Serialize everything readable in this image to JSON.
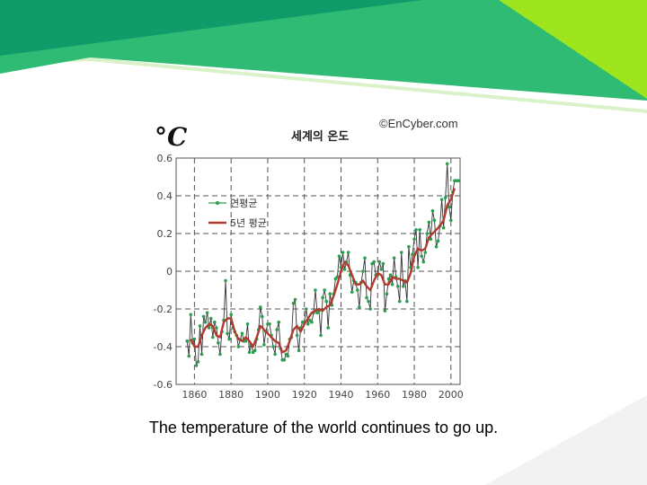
{
  "slide": {
    "caption": "The temperature of the world continues to go up.",
    "colors": {
      "banner_dark": "#109b6a",
      "banner_mid": "#2fbb73",
      "banner_lime": "#9ee51e",
      "banner_pale": "#d9f2c8"
    }
  },
  "chart_data": {
    "type": "line",
    "title": "세계의 온도",
    "unit_label": "°C",
    "copyright": "©EnCyber.com",
    "xlim": [
      1850,
      2005
    ],
    "ylim": [
      -0.6,
      0.6
    ],
    "grid": true,
    "legend_position": "top-left",
    "x_ticks": [
      1860,
      1880,
      1900,
      1920,
      1940,
      1960,
      1980,
      2000
    ],
    "y_ticks": [
      -0.6,
      -0.4,
      -0.2,
      0,
      0.2,
      0.4,
      0.6
    ],
    "y_tick_labels": [
      "-0.6",
      "-0.4",
      "-0.2",
      "0",
      "0.2",
      "0.4",
      "0.6"
    ],
    "series": [
      {
        "name": "연평균",
        "color": "#2a9d4f",
        "style": "line-markers",
        "x": [
          1856,
          1857,
          1858,
          1859,
          1860,
          1861,
          1862,
          1863,
          1864,
          1865,
          1866,
          1867,
          1868,
          1869,
          1870,
          1871,
          1872,
          1873,
          1874,
          1875,
          1876,
          1877,
          1878,
          1879,
          1880,
          1881,
          1882,
          1883,
          1884,
          1885,
          1886,
          1887,
          1888,
          1889,
          1890,
          1891,
          1892,
          1893,
          1894,
          1895,
          1896,
          1897,
          1898,
          1899,
          1900,
          1901,
          1902,
          1903,
          1904,
          1905,
          1906,
          1907,
          1908,
          1909,
          1910,
          1911,
          1912,
          1913,
          1914,
          1915,
          1916,
          1917,
          1918,
          1919,
          1920,
          1921,
          1922,
          1923,
          1924,
          1925,
          1926,
          1927,
          1928,
          1929,
          1930,
          1931,
          1932,
          1933,
          1934,
          1935,
          1936,
          1937,
          1938,
          1939,
          1940,
          1941,
          1942,
          1943,
          1944,
          1945,
          1946,
          1947,
          1948,
          1949,
          1950,
          1951,
          1952,
          1953,
          1954,
          1955,
          1956,
          1957,
          1958,
          1959,
          1960,
          1961,
          1962,
          1963,
          1964,
          1965,
          1966,
          1967,
          1968,
          1969,
          1970,
          1971,
          1972,
          1973,
          1974,
          1975,
          1976,
          1977,
          1978,
          1979,
          1980,
          1981,
          1982,
          1983,
          1984,
          1985,
          1986,
          1987,
          1988,
          1989,
          1990,
          1991,
          1992,
          1993,
          1994,
          1995,
          1996,
          1997,
          1998,
          1999,
          2000,
          2001,
          2002,
          2003,
          2004
        ],
        "values": [
          -0.37,
          -0.45,
          -0.23,
          -0.38,
          -0.36,
          -0.5,
          -0.48,
          -0.29,
          -0.44,
          -0.24,
          -0.27,
          -0.22,
          -0.3,
          -0.25,
          -0.35,
          -0.27,
          -0.3,
          -0.38,
          -0.44,
          -0.32,
          -0.26,
          -0.05,
          -0.33,
          -0.36,
          -0.23,
          -0.3,
          -0.32,
          -0.34,
          -0.4,
          -0.36,
          -0.33,
          -0.37,
          -0.37,
          -0.28,
          -0.43,
          -0.39,
          -0.43,
          -0.42,
          -0.36,
          -0.31,
          -0.19,
          -0.24,
          -0.39,
          -0.32,
          -0.28,
          -0.28,
          -0.34,
          -0.4,
          -0.44,
          -0.31,
          -0.27,
          -0.41,
          -0.47,
          -0.47,
          -0.44,
          -0.45,
          -0.36,
          -0.35,
          -0.17,
          -0.15,
          -0.34,
          -0.42,
          -0.3,
          -0.27,
          -0.27,
          -0.2,
          -0.28,
          -0.26,
          -0.27,
          -0.22,
          -0.1,
          -0.22,
          -0.21,
          -0.34,
          -0.14,
          -0.1,
          -0.16,
          -0.3,
          -0.12,
          -0.18,
          -0.12,
          -0.04,
          -0.03,
          0.08,
          0.02,
          0.1,
          0.01,
          0.05,
          0.1,
          -0.02,
          -0.11,
          -0.05,
          -0.06,
          -0.1,
          -0.19,
          -0.06,
          0.0,
          0.07,
          -0.14,
          -0.16,
          -0.2,
          0.04,
          0.05,
          -0.02,
          -0.02,
          0.05,
          0.01,
          0.04,
          -0.21,
          -0.12,
          -0.04,
          -0.02,
          -0.07,
          0.07,
          -0.03,
          -0.08,
          -0.16,
          0.1,
          -0.08,
          -0.05,
          -0.16,
          0.13,
          0.02,
          0.09,
          0.17,
          0.22,
          0.02,
          0.22,
          0.08,
          0.05,
          0.1,
          0.2,
          0.26,
          0.17,
          0.32,
          0.27,
          0.13,
          0.16,
          0.24,
          0.38,
          0.23,
          0.39,
          0.57,
          0.34,
          0.27,
          0.42,
          0.48,
          0.48,
          0.48
        ]
      },
      {
        "name": "5년 평균",
        "color": "#b03a2e",
        "style": "line",
        "x": [
          1858,
          1860,
          1862,
          1864,
          1866,
          1868,
          1870,
          1872,
          1874,
          1876,
          1878,
          1880,
          1882,
          1884,
          1886,
          1888,
          1890,
          1892,
          1894,
          1896,
          1898,
          1900,
          1902,
          1904,
          1906,
          1908,
          1910,
          1912,
          1914,
          1916,
          1918,
          1920,
          1922,
          1924,
          1926,
          1928,
          1930,
          1932,
          1934,
          1936,
          1938,
          1940,
          1942,
          1944,
          1946,
          1948,
          1950,
          1952,
          1954,
          1956,
          1958,
          1960,
          1962,
          1964,
          1966,
          1968,
          1970,
          1972,
          1974,
          1976,
          1978,
          1980,
          1982,
          1984,
          1986,
          1988,
          1990,
          1992,
          1994,
          1996,
          1998,
          2000,
          2002
        ],
        "values": [
          -0.36,
          -0.4,
          -0.4,
          -0.34,
          -0.3,
          -0.28,
          -0.29,
          -0.34,
          -0.35,
          -0.27,
          -0.25,
          -0.25,
          -0.32,
          -0.36,
          -0.37,
          -0.35,
          -0.37,
          -0.4,
          -0.35,
          -0.29,
          -0.31,
          -0.33,
          -0.35,
          -0.37,
          -0.38,
          -0.43,
          -0.42,
          -0.37,
          -0.31,
          -0.29,
          -0.32,
          -0.28,
          -0.25,
          -0.22,
          -0.21,
          -0.2,
          -0.21,
          -0.19,
          -0.18,
          -0.13,
          -0.07,
          0.0,
          0.05,
          0.03,
          -0.02,
          -0.07,
          -0.07,
          -0.05,
          -0.08,
          -0.1,
          -0.05,
          -0.01,
          -0.02,
          -0.07,
          -0.07,
          -0.03,
          -0.04,
          -0.04,
          -0.05,
          -0.06,
          -0.01,
          0.08,
          0.12,
          0.11,
          0.12,
          0.18,
          0.2,
          0.22,
          0.24,
          0.27,
          0.35,
          0.38,
          0.44
        ]
      }
    ]
  }
}
